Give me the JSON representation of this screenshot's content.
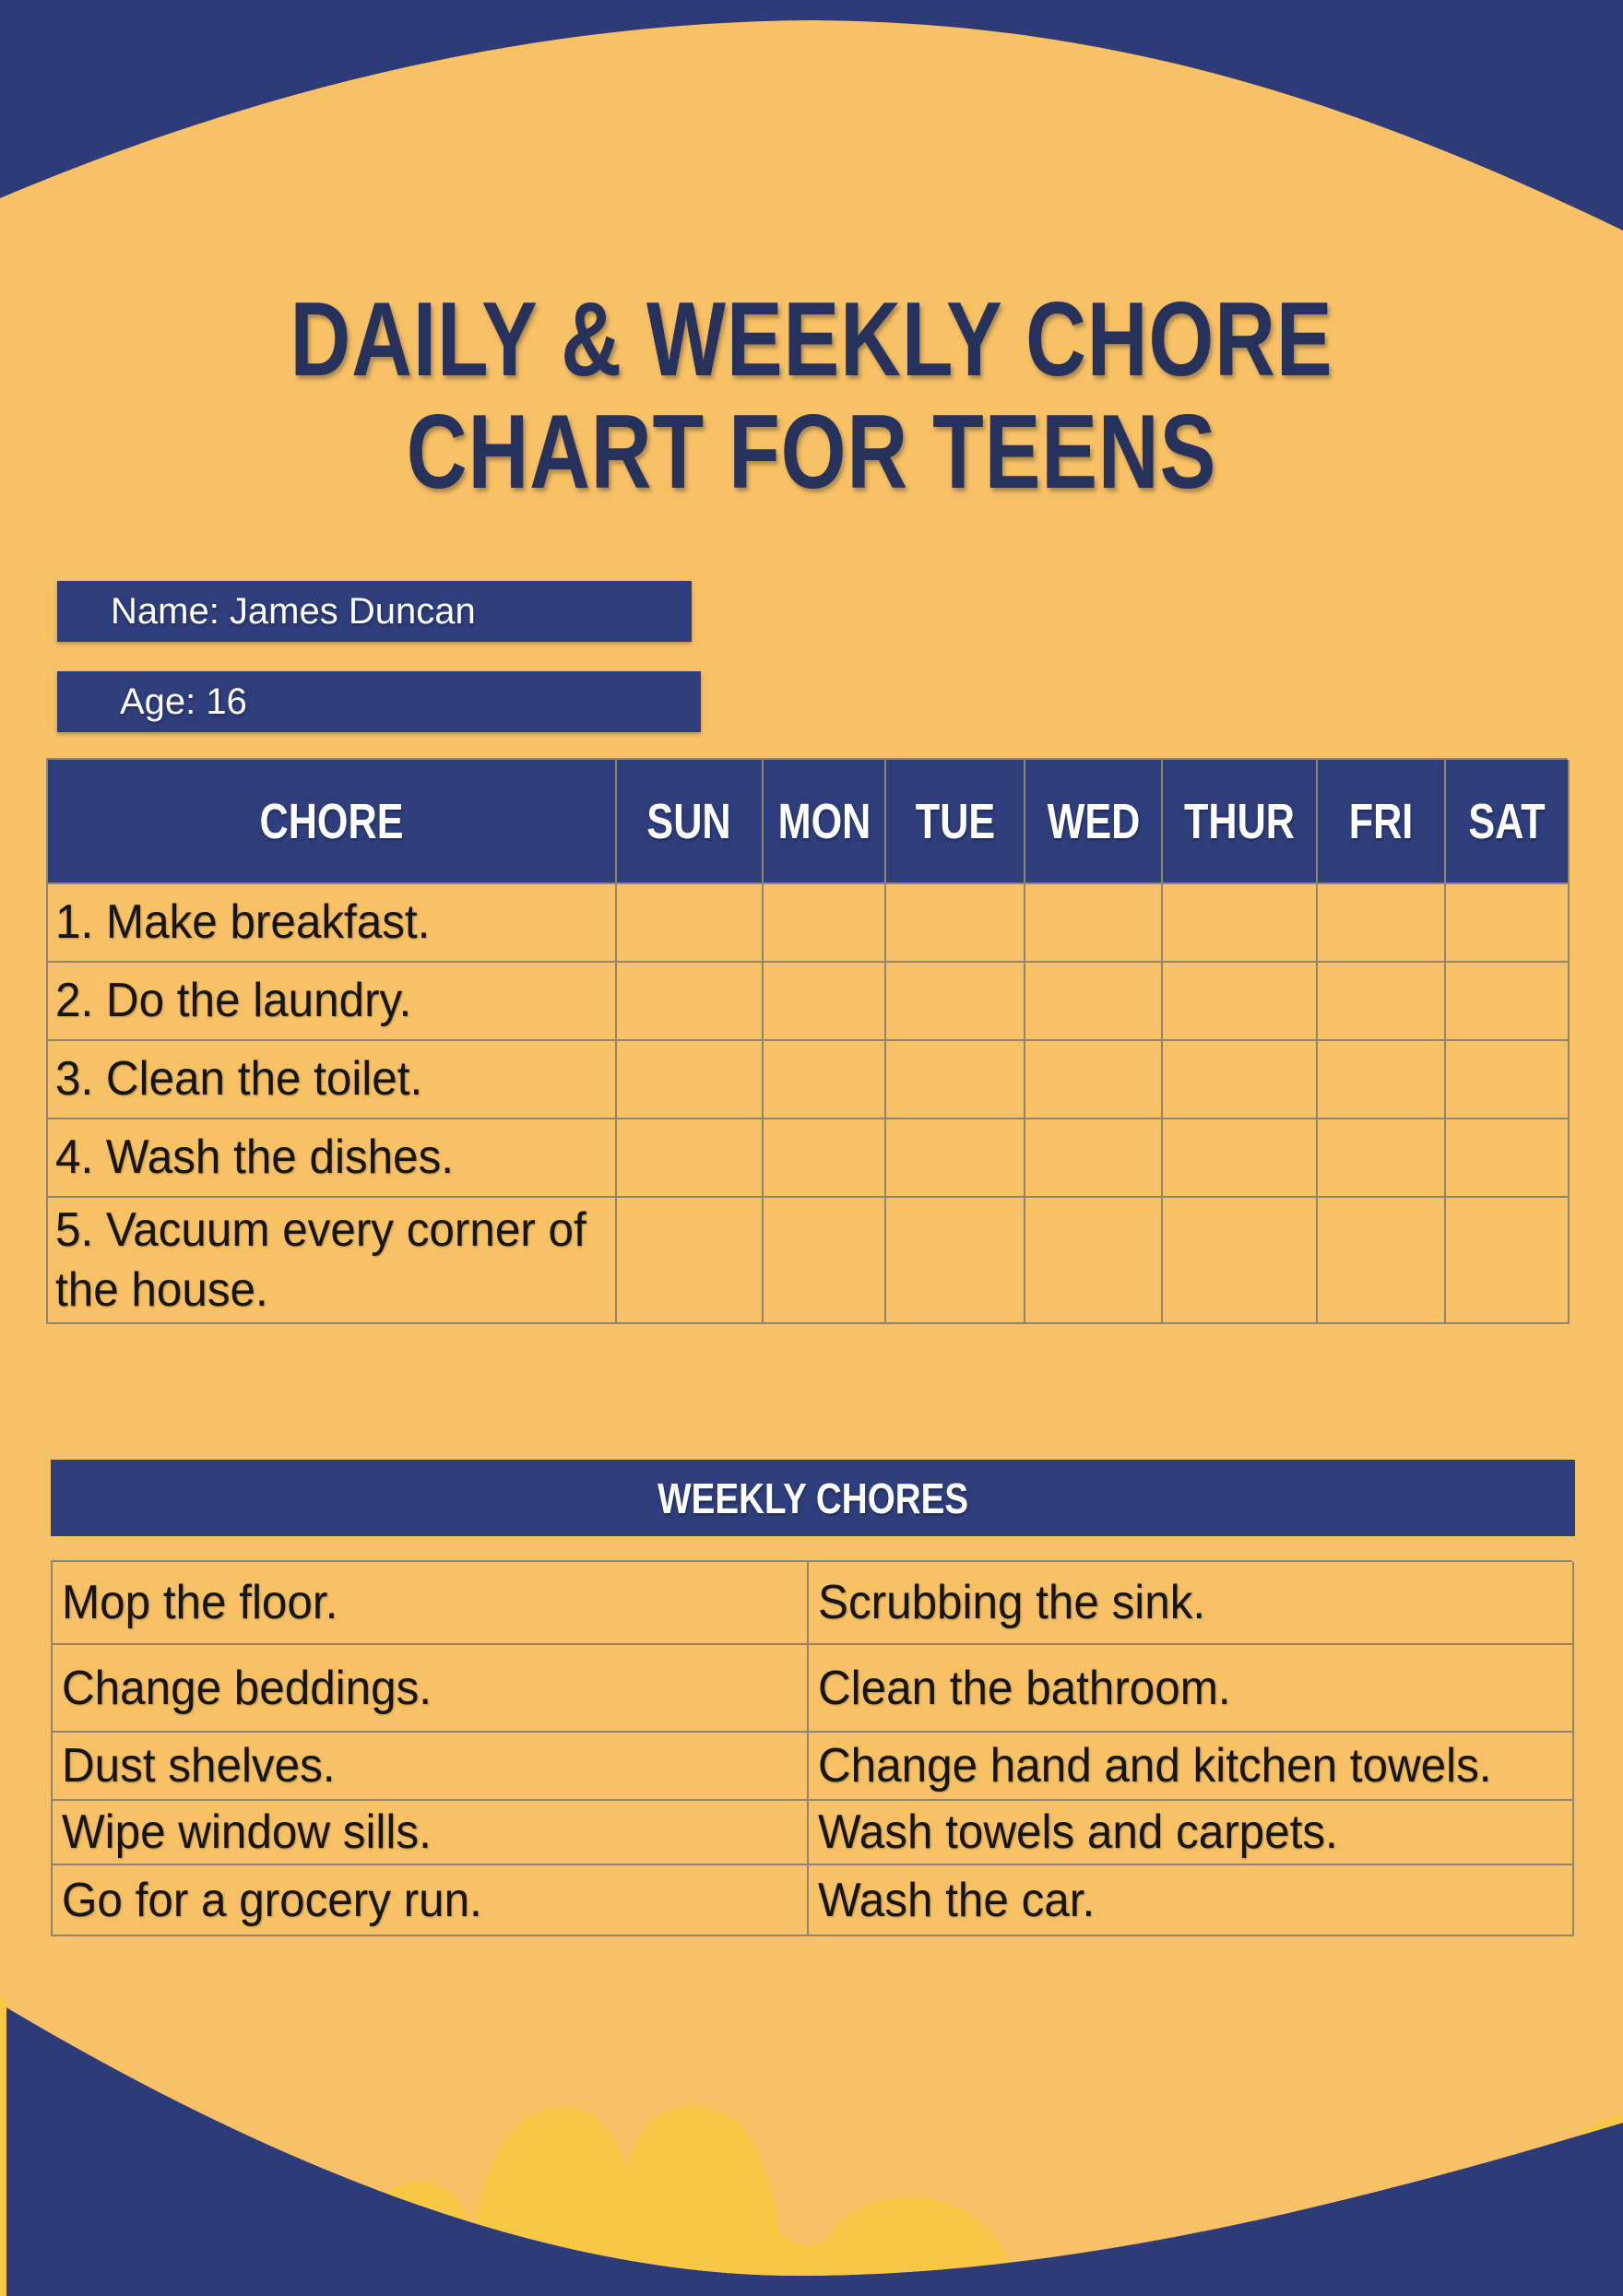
{
  "page": {
    "title_line1": "DAILY & WEEKLY CHORE",
    "title_line2": "CHART FOR TEENS",
    "name_label": "Name: James Duncan",
    "age_label": "Age: 16"
  },
  "daily_table": {
    "chore_header": "CHORE",
    "day_headers": [
      "SUN",
      "MON",
      "TUE",
      "WED",
      "THUR",
      "FRI",
      "SAT"
    ],
    "chores": [
      "1. Make breakfast.",
      "2. Do the laundry.",
      "3. Clean the toilet.",
      "4. Wash the dishes.",
      "5. Vacuum every corner of the house."
    ]
  },
  "weekly": {
    "header": "WEEKLY CHORES",
    "rows": [
      [
        "Mop the floor.",
        "Scrubbing the sink."
      ],
      [
        "Change beddings.",
        "Clean the bathroom."
      ],
      [
        "Dust shelves.",
        "Change hand and kitchen towels."
      ],
      [
        "Wipe window sills.",
        "Wash towels and carpets."
      ],
      [
        "Go for a grocery run.",
        "Wash the car."
      ]
    ]
  },
  "colors": {
    "background_blue": "#2d3c79",
    "panel_blue": "#2e3e7c",
    "orange": "#f9c165",
    "golden_yellow": "#f8c743",
    "title_navy": "#26325b",
    "cell_text": "#151515",
    "table_border": "#8d8672"
  }
}
